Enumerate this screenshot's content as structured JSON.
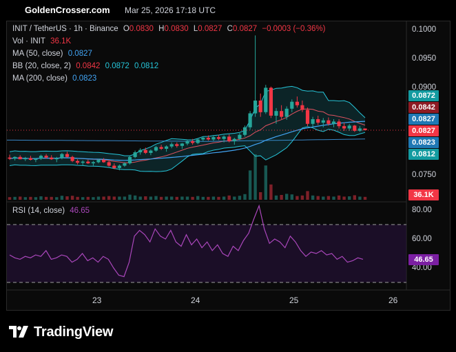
{
  "header": {
    "site": "GoldenCrosser.com",
    "datetime": "Mar 25, 2026 17:18 UTC"
  },
  "legend": {
    "symbol": "INIT / TetherUS · 1h · Binance",
    "o_label": "O",
    "o_value": "0.0830",
    "h_label": "H",
    "h_value": "0.0830",
    "l_label": "L",
    "l_value": "0.0827",
    "c_label": "C",
    "c_value": "0.0827",
    "change": "−0.0003 (−0.36%)",
    "vol_label": "Vol · INIT",
    "vol_value": "36.1K",
    "ma50_label": "MA (50, close)",
    "ma50_value": "0.0827",
    "bb_label": "BB (20, close, 2)",
    "bb_basis": "0.0842",
    "bb_upper": "0.0872",
    "bb_lower": "0.0812",
    "ma200_label": "MA (200, close)",
    "ma200_value": "0.0823",
    "rsi_label": "RSI (14, close)",
    "rsi_value": "46.65"
  },
  "price_axis": [
    "0.1000",
    "0.0950",
    "0.0900",
    "0.0750"
  ],
  "price_tags": {
    "bb_upper": "0.0872",
    "bb_basis": "0.0842",
    "ma50": "0.0827",
    "last": "0.0827",
    "ma200": "0.0823",
    "bb_lower": "0.0812",
    "volume": "36.1K",
    "rsi": "46.65"
  },
  "rsi_axis": [
    "80.00",
    "60.00",
    "40.00"
  ],
  "time_axis": [
    "23",
    "24",
    "25",
    "26"
  ],
  "brand": {
    "logo": "tradingview-logo-icon",
    "name": "TradingView"
  },
  "colors": {
    "up": "#26a69a",
    "down": "#f23645",
    "ma50": "#42a5f5",
    "bb": "#26c6da",
    "bb_basis": "#e05260",
    "ma200": "#42a5f5",
    "rsi": "#ab47bc",
    "tag_bb_upper": "#139ba0",
    "tag_bb_basis": "#8e1b24",
    "tag_ma50": "#1f78b4",
    "tag_last": "#f23645",
    "tag_ma200": "#1f78b4",
    "tag_bb_lower": "#139ba0",
    "tag_volume": "#f23645",
    "tag_rsi": "#7b1fa2"
  },
  "chart_data": {
    "type": "candlestick",
    "interval": "1h",
    "y_range": [
      0.073,
      0.1005
    ],
    "rsi_range": [
      20,
      80
    ],
    "rsi_levels": [
      70,
      30
    ],
    "last_price": 0.0827,
    "date_ticks": [
      "23",
      "24",
      "25",
      "26"
    ],
    "candles_approx": [
      [
        0.078,
        0.0785,
        0.0776,
        0.0778
      ],
      [
        0.0778,
        0.0782,
        0.0775,
        0.0781
      ],
      [
        0.0781,
        0.0784,
        0.0777,
        0.0777
      ],
      [
        0.0777,
        0.0781,
        0.0774,
        0.0779
      ],
      [
        0.0779,
        0.0783,
        0.0775,
        0.0776
      ],
      [
        0.0776,
        0.0779,
        0.0772,
        0.0778
      ],
      [
        0.0778,
        0.0785,
        0.0776,
        0.0783
      ],
      [
        0.0783,
        0.0786,
        0.0778,
        0.078
      ],
      [
        0.078,
        0.0784,
        0.0776,
        0.0777
      ],
      [
        0.0777,
        0.0781,
        0.0772,
        0.0779
      ],
      [
        0.0779,
        0.0788,
        0.0777,
        0.0786
      ],
      [
        0.0786,
        0.079,
        0.078,
        0.0781
      ],
      [
        0.0781,
        0.0783,
        0.0772,
        0.0774
      ],
      [
        0.0774,
        0.0777,
        0.0768,
        0.0771
      ],
      [
        0.0771,
        0.0775,
        0.0767,
        0.0773
      ],
      [
        0.0773,
        0.0776,
        0.0769,
        0.077
      ],
      [
        0.077,
        0.0774,
        0.0766,
        0.0772
      ],
      [
        0.0772,
        0.0778,
        0.077,
        0.0776
      ],
      [
        0.0776,
        0.0779,
        0.0771,
        0.0772
      ],
      [
        0.0772,
        0.0775,
        0.0764,
        0.0766
      ],
      [
        0.0766,
        0.077,
        0.076,
        0.0762
      ],
      [
        0.0762,
        0.0768,
        0.0758,
        0.0766
      ],
      [
        0.0766,
        0.0772,
        0.0764,
        0.077
      ],
      [
        0.077,
        0.0783,
        0.0768,
        0.0781
      ],
      [
        0.0781,
        0.0792,
        0.0779,
        0.0789
      ],
      [
        0.0789,
        0.0796,
        0.0785,
        0.0793
      ],
      [
        0.0793,
        0.0797,
        0.0786,
        0.0788
      ],
      [
        0.0788,
        0.0794,
        0.0784,
        0.0792
      ],
      [
        0.0792,
        0.08,
        0.079,
        0.0798
      ],
      [
        0.0798,
        0.0802,
        0.0793,
        0.0795
      ],
      [
        0.0795,
        0.0801,
        0.079,
        0.0799
      ],
      [
        0.0799,
        0.0806,
        0.0796,
        0.0803
      ],
      [
        0.0803,
        0.0806,
        0.0797,
        0.08
      ],
      [
        0.08,
        0.0805,
        0.0795,
        0.0804
      ],
      [
        0.0804,
        0.0811,
        0.0801,
        0.0808
      ],
      [
        0.0808,
        0.0812,
        0.0802,
        0.0805
      ],
      [
        0.0805,
        0.0813,
        0.0803,
        0.0811
      ],
      [
        0.0811,
        0.0816,
        0.0808,
        0.0814
      ],
      [
        0.0814,
        0.0818,
        0.0809,
        0.0811
      ],
      [
        0.0811,
        0.0817,
        0.0808,
        0.0815
      ],
      [
        0.0815,
        0.0819,
        0.081,
        0.0812
      ],
      [
        0.0812,
        0.0818,
        0.0806,
        0.0816
      ],
      [
        0.0816,
        0.082,
        0.0806,
        0.0808
      ],
      [
        0.0808,
        0.0814,
        0.0802,
        0.0812
      ],
      [
        0.0812,
        0.0822,
        0.081,
        0.0819
      ],
      [
        0.0819,
        0.0835,
        0.0816,
        0.0832
      ],
      [
        0.0832,
        0.086,
        0.0828,
        0.0856
      ],
      [
        0.0856,
        0.099,
        0.085,
        0.0878
      ],
      [
        0.0878,
        0.089,
        0.085,
        0.0858
      ],
      [
        0.0858,
        0.0905,
        0.0855,
        0.09
      ],
      [
        0.09,
        0.0902,
        0.0848,
        0.0852
      ],
      [
        0.0852,
        0.0865,
        0.0838,
        0.086
      ],
      [
        0.086,
        0.087,
        0.0846,
        0.085
      ],
      [
        0.085,
        0.0868,
        0.0845,
        0.0864
      ],
      [
        0.0864,
        0.088,
        0.0858,
        0.0876
      ],
      [
        0.0876,
        0.0885,
        0.0866,
        0.087
      ],
      [
        0.087,
        0.0878,
        0.0858,
        0.0862
      ],
      [
        0.0862,
        0.0866,
        0.0834,
        0.0838
      ],
      [
        0.0838,
        0.085,
        0.0832,
        0.0846
      ],
      [
        0.0846,
        0.0852,
        0.0836,
        0.084
      ],
      [
        0.084,
        0.0848,
        0.0832,
        0.0844
      ],
      [
        0.0844,
        0.0849,
        0.0835,
        0.0838
      ],
      [
        0.0838,
        0.0846,
        0.0832,
        0.0842
      ],
      [
        0.0842,
        0.0846,
        0.083,
        0.0834
      ],
      [
        0.0834,
        0.084,
        0.0826,
        0.083
      ],
      [
        0.083,
        0.0838,
        0.0826,
        0.0835
      ],
      [
        0.0835,
        0.0836,
        0.0824,
        0.0826
      ],
      [
        0.0826,
        0.0834,
        0.0824,
        0.083
      ],
      [
        0.083,
        0.083,
        0.0827,
        0.0827
      ]
    ],
    "rsi_approx": [
      49,
      47,
      46,
      48,
      47,
      49,
      48,
      52,
      46,
      47,
      49,
      48,
      44,
      46,
      50,
      45,
      47,
      44,
      48,
      46,
      40,
      35,
      34,
      44,
      62,
      66,
      63,
      58,
      67,
      62,
      60,
      66,
      58,
      55,
      63,
      56,
      60,
      54,
      58,
      52,
      56,
      50,
      48,
      55,
      52,
      59,
      64,
      74,
      83,
      67,
      57,
      60,
      58,
      54,
      62,
      58,
      52,
      48,
      51,
      50,
      52,
      49,
      50,
      46,
      48,
      44,
      45,
      47,
      46
    ]
  }
}
